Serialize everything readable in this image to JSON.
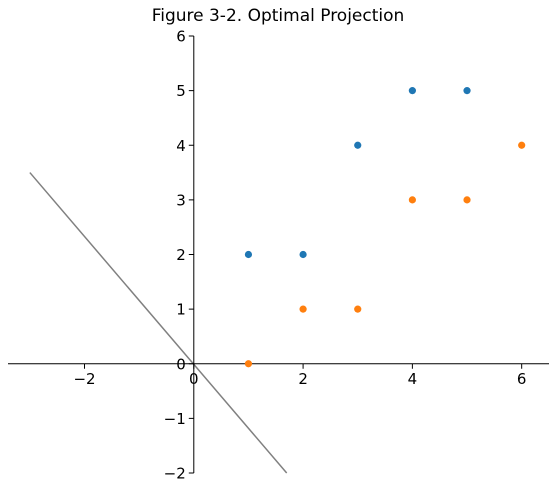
{
  "chart_data": {
    "type": "scatter",
    "title": "Figure 3-2. Optimal Projection",
    "xlabel": "",
    "ylabel": "",
    "xlim": [
      -3.4,
      6.5
    ],
    "ylim": [
      -2,
      6
    ],
    "xticks": [
      -2,
      0,
      2,
      4,
      6
    ],
    "yticks": [
      -2,
      -1,
      0,
      1,
      2,
      3,
      4,
      5,
      6
    ],
    "xtick_labels": [
      "−2",
      "0",
      "2",
      "4",
      "6"
    ],
    "ytick_labels": [
      "−2",
      "−1",
      "0",
      "1",
      "2",
      "3",
      "4",
      "5",
      "6"
    ],
    "grid": false,
    "spines": "centered at origin",
    "series": [
      {
        "color": "#1f77b4",
        "points": [
          [
            1,
            2
          ],
          [
            2,
            2
          ],
          [
            3,
            4
          ],
          [
            4,
            5
          ],
          [
            5,
            5
          ]
        ]
      },
      {
        "color": "#ff7f0e",
        "points": [
          [
            1,
            0
          ],
          [
            2,
            1
          ],
          [
            3,
            1
          ],
          [
            4,
            3
          ],
          [
            5,
            3
          ],
          [
            6,
            4
          ]
        ]
      }
    ],
    "lines": [
      {
        "color": "#808080",
        "points": [
          [
            -3.0,
            3.5
          ],
          [
            1.7,
            -2.0
          ]
        ]
      }
    ]
  }
}
